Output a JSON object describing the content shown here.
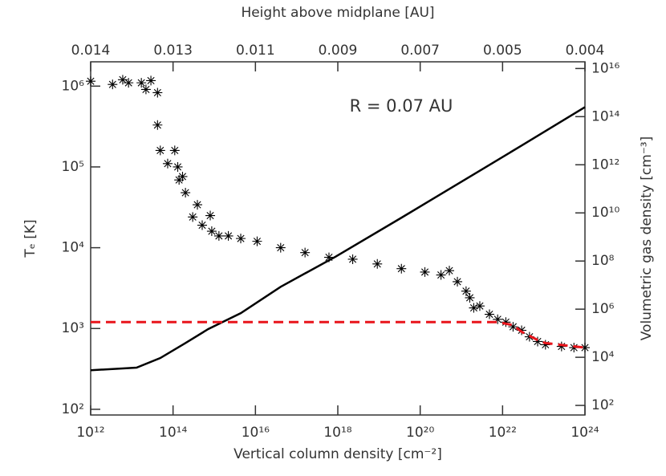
{
  "chart_data": {
    "type": "scatter",
    "xlabel": "Vertical column density [cm⁻²]",
    "ylabel": "Tₑ [K]",
    "y2label": "Volumetric gas density [cm⁻³]",
    "x2label": "Height above midplane [AU]",
    "annotation": "R = 0.07 AU",
    "xscale": "log",
    "yscale": "log",
    "y2scale": "log",
    "xlim": [
      1000000000000.0,
      1e+24
    ],
    "ylim": [
      85,
      2000000
    ],
    "y2lim": [
      40,
      1.9e+16
    ],
    "xticks": [
      {
        "value": 1000000000000.0,
        "label": "10¹²"
      },
      {
        "value": 100000000000000.0,
        "label": "10¹⁴"
      },
      {
        "value": 1e+16,
        "label": "10¹⁶"
      },
      {
        "value": 1e+18,
        "label": "10¹⁸"
      },
      {
        "value": 1e+20,
        "label": "10²⁰"
      },
      {
        "value": 1e+22,
        "label": "10²²"
      },
      {
        "value": 1e+24,
        "label": "10²⁴"
      }
    ],
    "x2ticks": [
      {
        "value": 1000000000000.0,
        "label": "0.014"
      },
      {
        "value": 100000000000000.0,
        "label": "0.013"
      },
      {
        "value": 1e+16,
        "label": "0.011"
      },
      {
        "value": 1e+18,
        "label": "0.009"
      },
      {
        "value": 1e+20,
        "label": "0.007"
      },
      {
        "value": 1e+22,
        "label": "0.005"
      },
      {
        "value": 1e+24,
        "label": "0.004"
      }
    ],
    "yticks": [
      {
        "value": 100,
        "label": "10²"
      },
      {
        "value": 1000,
        "label": "10³"
      },
      {
        "value": 10000,
        "label": "10⁴"
      },
      {
        "value": 100000,
        "label": "10⁵"
      },
      {
        "value": 1000000,
        "label": "10⁶"
      }
    ],
    "y2ticks": [
      {
        "value": 100,
        "label": "10²"
      },
      {
        "value": 10000,
        "label": "10⁴"
      },
      {
        "value": 1000000,
        "label": "10⁶"
      },
      {
        "value": 100000000,
        "label": "10⁸"
      },
      {
        "value": 10000000000.0,
        "label": "10¹⁰"
      },
      {
        "value": 1000000000000.0,
        "label": "10¹²"
      },
      {
        "value": 100000000000000.0,
        "label": "10¹⁴"
      },
      {
        "value": 1e+16,
        "label": "10¹⁶"
      }
    ],
    "series": [
      {
        "type": "scatter",
        "color": "#000000",
        "x": [
          1000000000000.0,
          3400000000000.0,
          6000000000000.0,
          8300000000000.0,
          17000000000000.0,
          22000000000000.0,
          29000000000000.0,
          42000000000000.0,
          42000000000000.0,
          49000000000000.0,
          74000000000000.0,
          110000000000000.0,
          130000000000000.0,
          140000000000000.0,
          170000000000000.0,
          200000000000000.0,
          300000000000000.0,
          390000000000000.0,
          510000000000000.0,
          800000000000000.0,
          870000000000000.0,
          1300000000000000.0,
          2200000000000000.0,
          4400000000000000.0,
          1.1e+16,
          4.1e+16,
          1.6e+17,
          6.1e+17,
          2.3e+18,
          9.1e+18,
          3.5e+19,
          1.3e+20,
          3.2e+20,
          5.1e+20,
          8e+20,
          1.3e+21,
          1.6e+21,
          2e+21,
          2.8e+21,
          4.8e+21,
          7.6e+21,
          1.2e+22,
          1.8e+22,
          2.9e+22,
          4.5e+22,
          7.1e+22,
          1.1e+23,
          2.7e+23,
          5.4e+23,
          1e+24
        ],
        "values": [
          1150000,
          1050000,
          1200000,
          1100000,
          1100000,
          910000,
          1170000,
          830000,
          330000,
          160000,
          110000,
          160000,
          100000,
          69000,
          76000,
          48000,
          24000,
          34000,
          19000,
          25000,
          16000,
          14000,
          14000,
          13000,
          12000,
          10000,
          8700,
          7600,
          7200,
          6300,
          5500,
          5000,
          4600,
          5200,
          3800,
          2900,
          2400,
          1800,
          1900,
          1500,
          1300,
          1200,
          1050,
          950,
          790,
          690,
          630,
          600,
          580,
          580
        ]
      },
      {
        "type": "line",
        "axis": "y2",
        "color": "#000000",
        "x": [
          1000000000000.0,
          13000000000000.0,
          49000000000000.0,
          190000000000000.0,
          720000000000000.0,
          4400000000000000.0,
          4.1e+16,
          8.7e+17,
          3.5e+19,
          3.1e+21,
          2.9e+22,
          1e+24
        ],
        "values": [
          2900,
          3700,
          9300,
          37000,
          150000,
          680000,
          8500000,
          150000000,
          6300000000,
          630000000000,
          6300000000000,
          250000000000000
        ]
      },
      {
        "type": "line",
        "dash": true,
        "color": "#e8141b",
        "x": [
          1000000000000.0,
          7.6e+21,
          1.8e+22,
          2.9e+22,
          7.1e+22,
          1.1e+23,
          1e+24
        ],
        "values": [
          1200,
          1200,
          1100,
          910,
          720,
          660,
          580
        ]
      }
    ]
  }
}
